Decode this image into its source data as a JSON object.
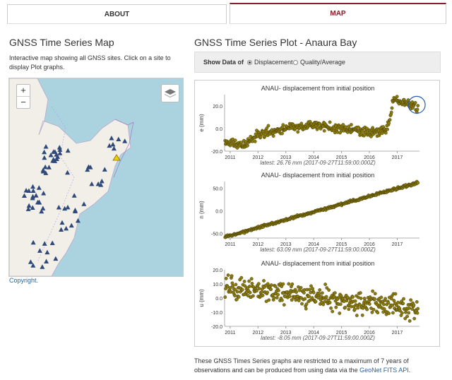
{
  "tabs": {
    "about": "ABOUT",
    "map": "MAP"
  },
  "left": {
    "title": "GNSS Time Series Map",
    "description": "Interactive map showing all GNSS sites. Click on a site to display Plot graphs.",
    "zoom_in": "+",
    "zoom_out": "−",
    "copyright": "Copyright."
  },
  "right": {
    "title": "GNSS Time Series Plot - Anaura Bay",
    "show_data_label": "Show Data of",
    "option_displacement": "Displacement",
    "option_quality": "Quality/Average",
    "selected_option": "Displacement"
  },
  "footer": {
    "text": "These GNSS Times Series graphs are restricted to a maximum of 7 years of observations and can be produced from using data via the",
    "link": "GeoNet FITS API",
    "end": "."
  },
  "colors": {
    "point_fill": "#8a7a10",
    "point_stroke": "#3a3300",
    "accent": "#8b1c2b",
    "site_marker": "#2f4a7a",
    "highlight": "#f0d000"
  },
  "chart_data": [
    {
      "type": "scatter",
      "title": "ANAU- displacement from initial position",
      "ylabel": "e (mm)",
      "ylim": [
        -20,
        30
      ],
      "yticks": [
        "20.0",
        "0.0",
        "-20.0"
      ],
      "xticks": [
        "2011",
        "2012",
        "2013",
        "2014",
        "2015",
        "2016",
        "2017"
      ],
      "xlim": [
        2010.8,
        2017.8
      ],
      "trend": [
        [
          2010.8,
          -12
        ],
        [
          2011.5,
          -15
        ],
        [
          2012.0,
          -5
        ],
        [
          2013.0,
          0
        ],
        [
          2014.0,
          3
        ],
        [
          2015.0,
          0
        ],
        [
          2016.0,
          -3
        ],
        [
          2016.6,
          -2
        ],
        [
          2016.75,
          10
        ],
        [
          2016.85,
          26
        ],
        [
          2017.3,
          22
        ],
        [
          2017.7,
          20
        ]
      ],
      "noise": 3,
      "latest": "latest: 26.76 mm (2017-09-27T11:59:00.000Z)"
    },
    {
      "type": "scatter",
      "title": "ANAU- displacement from initial position",
      "ylabel": "n (mm)",
      "ylim": [
        -60,
        65
      ],
      "yticks": [
        "50.0",
        "0.0",
        "-50.0"
      ],
      "xticks": [
        "2011",
        "2012",
        "2013",
        "2014",
        "2015",
        "2016",
        "2017"
      ],
      "xlim": [
        2010.8,
        2017.8
      ],
      "trend": [
        [
          2010.8,
          -58
        ],
        [
          2017.7,
          62
        ]
      ],
      "noise": 2,
      "latest": "latest: 63.09 mm (2017-09-27T11:59:00.000Z)"
    },
    {
      "type": "scatter",
      "title": "ANAU- displacement from initial position",
      "ylabel": "u (mm)",
      "ylim": [
        -20,
        20
      ],
      "yticks": [
        "20.0",
        "10.0",
        "0.0",
        "-10.0",
        "-20.0"
      ],
      "xticks": [
        "2011",
        "2012",
        "2013",
        "2014",
        "2015",
        "2016",
        "2017"
      ],
      "xlim": [
        2010.8,
        2017.8
      ],
      "trend": [
        [
          2010.8,
          8
        ],
        [
          2017.7,
          -8
        ]
      ],
      "noise": 6,
      "latest": "latest: -8.05 mm (2017-09-27T11:59:00.000Z)"
    }
  ]
}
